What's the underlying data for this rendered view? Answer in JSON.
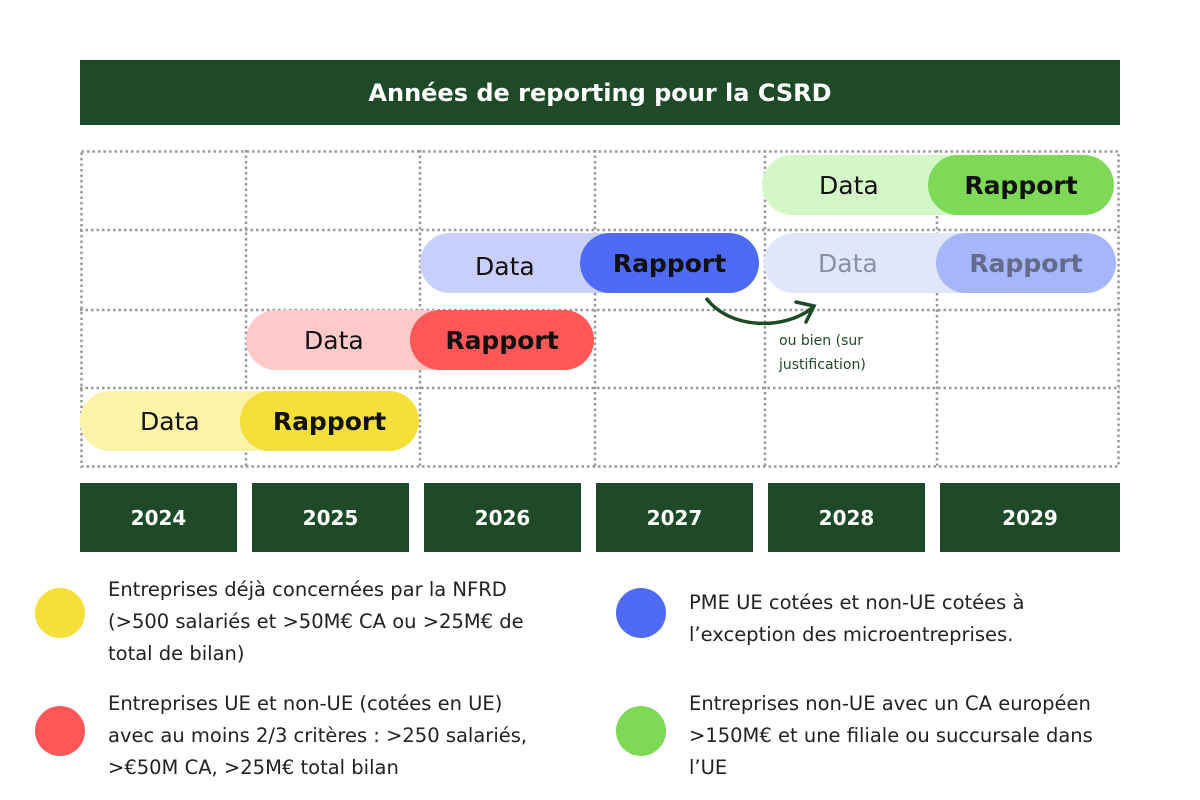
{
  "header": {
    "title": "Années de reporting pour la CSRD"
  },
  "pills": [
    {
      "data": "Data",
      "report": "Rapport"
    },
    {
      "data": "Data",
      "report": "Rapport"
    },
    {
      "data": "Data",
      "report": "Rapport"
    },
    {
      "data": "Data",
      "report": "Rapport"
    },
    {
      "data": "Data",
      "report": "Rapport"
    }
  ],
  "annotation": [
    "ou bien (sur",
    "justification)"
  ],
  "years": [
    "2024",
    "2025",
    "2026",
    "2027",
    "2028",
    "2029"
  ],
  "legend": [
    {
      "lines": [
        "Entreprises déjà concernées par la NFRD",
        "(>500 salariés et >50M€ CA ou >25M€ de",
        "total de bilan)"
      ]
    },
    {
      "lines": [
        "Entreprises UE et non-UE (cotées en UE)",
        "avec au moins 2/3 critères : >250 salariés,",
        ">€50M CA, >25M€ total bilan"
      ]
    },
    {
      "lines": [
        "PME UE cotées et non-UE cotées à",
        "l’exception des microentreprises."
      ]
    },
    {
      "lines": [
        "Entreprises non-UE avec un CA européen",
        ">150M€ et une filiale ou succursale dans",
        "l’UE"
      ]
    }
  ]
}
